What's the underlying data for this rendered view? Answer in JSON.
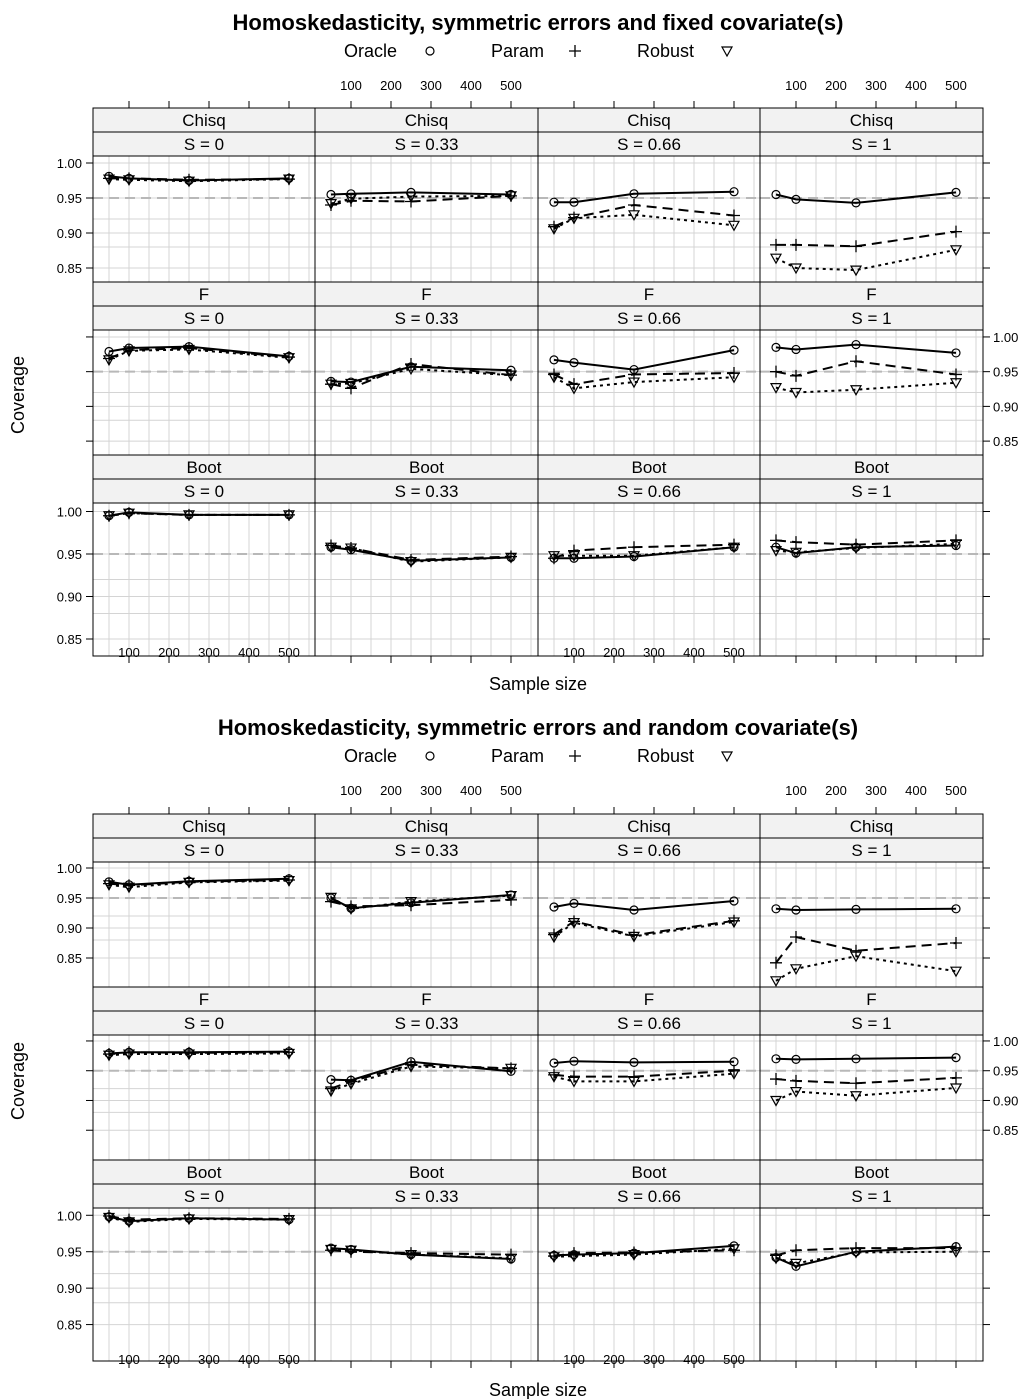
{
  "chart_data": [
    {
      "type": "line",
      "title": "Homoskedasticity, symmetric errors and fixed covariate(s)",
      "xlabel": "Sample size",
      "ylabel": "Coverage",
      "x": [
        50,
        100,
        250,
        500
      ],
      "xticks": [
        "100",
        "200",
        "300",
        "400",
        "500"
      ],
      "yticks": [
        "0.85",
        "0.90",
        "0.95",
        "1.00"
      ],
      "ylim": [
        0.83,
        1.01
      ],
      "reference_line": 0.95,
      "legend": [
        {
          "name": "Oracle",
          "symbol": "○"
        },
        {
          "name": "Param",
          "symbol": "+"
        },
        {
          "name": "Robust",
          "symbol": "▽"
        }
      ],
      "panels": [
        {
          "row": 0,
          "col": 0,
          "method": "Chisq",
          "s_label": "S = 0",
          "oracle": [
            0.981,
            0.978,
            0.975,
            0.978
          ],
          "param": [
            0.978,
            0.978,
            0.976,
            0.977
          ],
          "robust": [
            0.977,
            0.976,
            0.974,
            0.977
          ]
        },
        {
          "row": 0,
          "col": 1,
          "method": "Chisq",
          "s_label": "S = 0.33",
          "oracle": [
            0.955,
            0.956,
            0.958,
            0.955
          ],
          "param": [
            0.94,
            0.946,
            0.945,
            0.953
          ],
          "robust": [
            0.942,
            0.949,
            0.952,
            0.953
          ]
        },
        {
          "row": 0,
          "col": 2,
          "method": "Chisq",
          "s_label": "S = 0.66",
          "oracle": [
            0.944,
            0.944,
            0.956,
            0.959
          ],
          "param": [
            0.909,
            0.922,
            0.94,
            0.925
          ],
          "robust": [
            0.906,
            0.921,
            0.926,
            0.911
          ]
        },
        {
          "row": 0,
          "col": 3,
          "method": "Chisq",
          "s_label": "S = 1",
          "oracle": [
            0.955,
            0.948,
            0.943,
            0.958
          ],
          "param": [
            0.883,
            0.883,
            0.881,
            0.902
          ],
          "robust": [
            0.864,
            0.85,
            0.847,
            0.876
          ]
        },
        {
          "row": 1,
          "col": 0,
          "method": "F",
          "s_label": "S = 0",
          "oracle": [
            0.979,
            0.984,
            0.986,
            0.972
          ],
          "param": [
            0.969,
            0.981,
            0.984,
            0.971
          ],
          "robust": [
            0.967,
            0.98,
            0.982,
            0.97
          ]
        },
        {
          "row": 1,
          "col": 1,
          "method": "F",
          "s_label": "S = 0.33",
          "oracle": [
            0.936,
            0.935,
            0.957,
            0.952
          ],
          "param": [
            0.932,
            0.926,
            0.961,
            0.945
          ],
          "robust": [
            0.932,
            0.933,
            0.954,
            0.945
          ]
        },
        {
          "row": 1,
          "col": 2,
          "method": "F",
          "s_label": "S = 0.66",
          "oracle": [
            0.967,
            0.963,
            0.953,
            0.981
          ],
          "param": [
            0.946,
            0.932,
            0.946,
            0.948
          ],
          "robust": [
            0.942,
            0.926,
            0.935,
            0.942
          ]
        },
        {
          "row": 1,
          "col": 3,
          "method": "F",
          "s_label": "S = 1",
          "oracle": [
            0.985,
            0.982,
            0.989,
            0.977
          ],
          "param": [
            0.95,
            0.944,
            0.965,
            0.946
          ],
          "robust": [
            0.927,
            0.92,
            0.924,
            0.934
          ]
        },
        {
          "row": 2,
          "col": 0,
          "method": "Boot",
          "s_label": "S = 0",
          "oracle": [
            0.995,
            0.999,
            0.996,
            0.996
          ],
          "param": [
            0.995,
            0.998,
            0.996,
            0.996
          ],
          "robust": [
            0.995,
            0.998,
            0.996,
            0.996
          ]
        },
        {
          "row": 2,
          "col": 1,
          "method": "Boot",
          "s_label": "S = 0.33",
          "oracle": [
            0.958,
            0.955,
            0.942,
            0.946
          ],
          "param": [
            0.96,
            0.957,
            0.943,
            0.947
          ],
          "robust": [
            0.958,
            0.957,
            0.941,
            0.946
          ]
        },
        {
          "row": 2,
          "col": 2,
          "method": "Boot",
          "s_label": "S = 0.66",
          "oracle": [
            0.945,
            0.945,
            0.947,
            0.958
          ],
          "param": [
            0.945,
            0.954,
            0.958,
            0.961
          ],
          "robust": [
            0.948,
            0.948,
            0.948,
            0.958
          ]
        },
        {
          "row": 2,
          "col": 3,
          "method": "Boot",
          "s_label": "S = 1",
          "oracle": [
            0.958,
            0.951,
            0.958,
            0.96
          ],
          "param": [
            0.966,
            0.964,
            0.961,
            0.966
          ],
          "robust": [
            0.954,
            0.952,
            0.957,
            0.962
          ]
        }
      ]
    },
    {
      "type": "line",
      "title": "Homoskedasticity, symmetric errors and random covariate(s)",
      "xlabel": "Sample size",
      "ylabel": "Coverage",
      "x": [
        50,
        100,
        250,
        500
      ],
      "xticks": [
        "100",
        "200",
        "300",
        "400",
        "500"
      ],
      "yticks": [
        "0.85",
        "0.90",
        "0.95",
        "1.00"
      ],
      "ylim": [
        0.8,
        1.01
      ],
      "reference_line": 0.95,
      "legend": [
        {
          "name": "Oracle",
          "symbol": "○"
        },
        {
          "name": "Param",
          "symbol": "+"
        },
        {
          "name": "Robust",
          "symbol": "▽"
        }
      ],
      "panels": [
        {
          "row": 0,
          "col": 0,
          "method": "Chisq",
          "s_label": "S = 0",
          "oracle": [
            0.977,
            0.972,
            0.978,
            0.982
          ],
          "param": [
            0.974,
            0.971,
            0.977,
            0.98
          ],
          "robust": [
            0.972,
            0.968,
            0.976,
            0.979
          ]
        },
        {
          "row": 0,
          "col": 1,
          "method": "Chisq",
          "s_label": "S = 0.33",
          "oracle": [
            0.95,
            0.933,
            0.942,
            0.955
          ],
          "param": [
            0.944,
            0.936,
            0.938,
            0.947
          ],
          "robust": [
            0.951,
            0.932,
            0.944,
            0.954
          ]
        },
        {
          "row": 0,
          "col": 2,
          "method": "Chisq",
          "s_label": "S = 0.66",
          "oracle": [
            0.935,
            0.941,
            0.93,
            0.945
          ],
          "param": [
            0.889,
            0.911,
            0.888,
            0.912
          ],
          "robust": [
            0.885,
            0.909,
            0.886,
            0.91
          ]
        },
        {
          "row": 0,
          "col": 3,
          "method": "Chisq",
          "s_label": "S = 1",
          "oracle": [
            0.932,
            0.93,
            0.931,
            0.932
          ],
          "param": [
            0.842,
            0.885,
            0.862,
            0.875
          ],
          "robust": [
            0.812,
            0.832,
            0.853,
            0.828
          ]
        },
        {
          "row": 1,
          "col": 0,
          "method": "F",
          "s_label": "S = 0",
          "oracle": [
            0.979,
            0.981,
            0.981,
            0.982
          ],
          "param": [
            0.978,
            0.981,
            0.98,
            0.981
          ],
          "robust": [
            0.976,
            0.978,
            0.978,
            0.979
          ]
        },
        {
          "row": 1,
          "col": 1,
          "method": "F",
          "s_label": "S = 0.33",
          "oracle": [
            0.935,
            0.934,
            0.965,
            0.949
          ],
          "param": [
            0.92,
            0.932,
            0.96,
            0.954
          ],
          "robust": [
            0.916,
            0.928,
            0.957,
            0.954
          ]
        },
        {
          "row": 1,
          "col": 2,
          "method": "F",
          "s_label": "S = 0.66",
          "oracle": [
            0.963,
            0.966,
            0.964,
            0.965
          ],
          "param": [
            0.943,
            0.94,
            0.94,
            0.95
          ],
          "robust": [
            0.94,
            0.932,
            0.932,
            0.945
          ]
        },
        {
          "row": 1,
          "col": 3,
          "method": "F",
          "s_label": "S = 1",
          "oracle": [
            0.97,
            0.969,
            0.97,
            0.972
          ],
          "param": [
            0.936,
            0.933,
            0.929,
            0.938
          ],
          "robust": [
            0.9,
            0.915,
            0.908,
            0.921
          ]
        },
        {
          "row": 2,
          "col": 0,
          "method": "Boot",
          "s_label": "S = 0",
          "oracle": [
            0.998,
            0.992,
            0.996,
            0.994
          ],
          "param": [
            0.999,
            0.994,
            0.996,
            0.995
          ],
          "robust": [
            0.997,
            0.991,
            0.995,
            0.994
          ]
        },
        {
          "row": 2,
          "col": 1,
          "method": "Boot",
          "s_label": "S = 0.33",
          "oracle": [
            0.955,
            0.953,
            0.946,
            0.94
          ],
          "param": [
            0.952,
            0.95,
            0.948,
            0.946
          ],
          "robust": [
            0.953,
            0.952,
            0.946,
            0.941
          ]
        },
        {
          "row": 2,
          "col": 2,
          "method": "Boot",
          "s_label": "S = 0.66",
          "oracle": [
            0.945,
            0.946,
            0.948,
            0.958
          ],
          "param": [
            0.944,
            0.948,
            0.949,
            0.952
          ],
          "robust": [
            0.943,
            0.944,
            0.946,
            0.954
          ]
        },
        {
          "row": 2,
          "col": 3,
          "method": "Boot",
          "s_label": "S = 1",
          "oracle": [
            0.942,
            0.93,
            0.95,
            0.957
          ],
          "param": [
            0.945,
            0.952,
            0.955,
            0.955
          ],
          "robust": [
            0.941,
            0.934,
            0.949,
            0.95
          ]
        }
      ]
    }
  ]
}
